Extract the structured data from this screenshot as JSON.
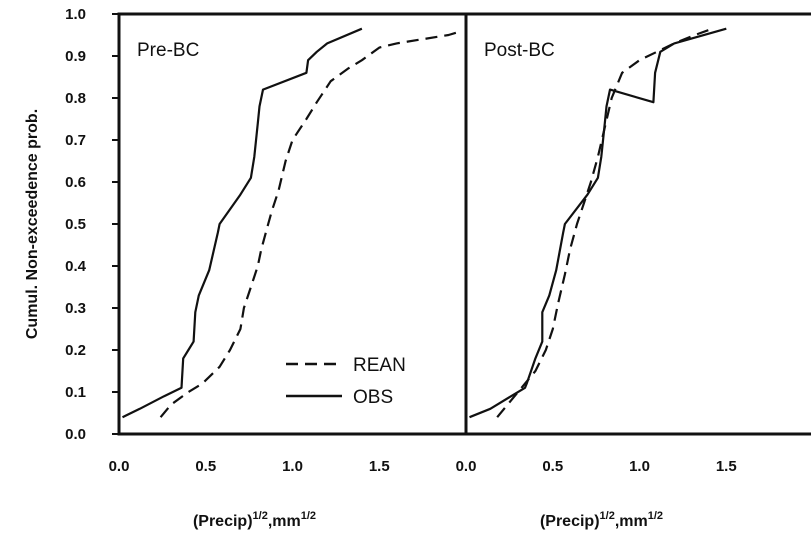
{
  "chart_data": {
    "type": "line",
    "ylabel": "Cumul. Non-exceedence prob.",
    "y_ticks": [
      "0.0",
      "0.1",
      "0.2",
      "0.3",
      "0.4",
      "0.5",
      "0.6",
      "0.7",
      "0.8",
      "0.9",
      "1.0"
    ],
    "ylim": [
      0,
      1.0
    ],
    "legend": {
      "placement": "lower-right of first panel",
      "entries": [
        "REAN",
        "OBS"
      ]
    },
    "panels": [
      {
        "label": "Pre-BC",
        "x_ticks": [
          "0.0",
          "0.5",
          "1.0",
          "1.5"
        ],
        "xlim": [
          0,
          2.0
        ],
        "xlabel": {
          "base": "(Precip)",
          "sup1": "1/2",
          "mid": ",mm",
          "sup2": "1/2"
        },
        "series": [
          {
            "name": "REAN",
            "style": "dashed",
            "x": [
              0.24,
              0.3,
              0.4,
              0.48,
              0.58,
              0.64,
              0.7,
              0.72,
              0.76,
              0.8,
              0.82,
              0.86,
              0.88,
              0.92,
              0.96,
              1.0,
              1.08,
              1.14,
              1.22,
              1.32,
              1.4,
              1.5,
              1.6,
              1.75,
              1.9,
              1.98
            ],
            "y": [
              0.04,
              0.07,
              0.1,
              0.12,
              0.16,
              0.2,
              0.25,
              0.3,
              0.35,
              0.4,
              0.44,
              0.5,
              0.53,
              0.58,
              0.65,
              0.7,
              0.75,
              0.79,
              0.84,
              0.87,
              0.89,
              0.92,
              0.93,
              0.94,
              0.95,
              0.96
            ]
          },
          {
            "name": "OBS",
            "style": "solid",
            "x": [
              0.02,
              0.12,
              0.26,
              0.36,
              0.37,
              0.4,
              0.43,
              0.44,
              0.46,
              0.52,
              0.57,
              0.58,
              0.7,
              0.76,
              0.78,
              0.8,
              0.81,
              0.83,
              1.08,
              1.09,
              1.14,
              1.2,
              1.4
            ],
            "y": [
              0.04,
              0.06,
              0.09,
              0.11,
              0.18,
              0.2,
              0.22,
              0.29,
              0.33,
              0.39,
              0.48,
              0.5,
              0.57,
              0.61,
              0.66,
              0.74,
              0.78,
              0.82,
              0.86,
              0.89,
              0.91,
              0.93,
              0.965
            ]
          }
        ]
      },
      {
        "label": "Post-BC",
        "x_ticks": [
          "0.0",
          "0.5",
          "1.0",
          "1.5"
        ],
        "xlim": [
          0,
          2.0
        ],
        "xlabel": {
          "base": "(Precip)",
          "sup1": "1/2",
          "mid": ",mm",
          "sup2": "1/2"
        },
        "series": [
          {
            "name": "REAN",
            "style": "dashed",
            "x": [
              0.18,
              0.24,
              0.32,
              0.4,
              0.46,
              0.5,
              0.53,
              0.57,
              0.6,
              0.64,
              0.68,
              0.72,
              0.76,
              0.8,
              0.84,
              0.9,
              1.0,
              1.1,
              1.2,
              1.32,
              1.42
            ],
            "y": [
              0.04,
              0.07,
              0.11,
              0.15,
              0.2,
              0.25,
              0.31,
              0.38,
              0.44,
              0.5,
              0.55,
              0.6,
              0.66,
              0.73,
              0.8,
              0.86,
              0.89,
              0.91,
              0.93,
              0.95,
              0.965
            ]
          },
          {
            "name": "OBS",
            "style": "solid",
            "x": [
              0.02,
              0.14,
              0.26,
              0.34,
              0.35,
              0.4,
              0.44,
              0.44,
              0.48,
              0.52,
              0.56,
              0.57,
              0.7,
              0.76,
              0.78,
              0.8,
              0.81,
              0.83,
              1.08,
              1.09,
              1.12,
              1.2,
              1.5
            ],
            "y": [
              0.04,
              0.06,
              0.09,
              0.11,
              0.12,
              0.18,
              0.22,
              0.29,
              0.33,
              0.39,
              0.48,
              0.5,
              0.57,
              0.61,
              0.66,
              0.74,
              0.78,
              0.82,
              0.79,
              0.86,
              0.91,
              0.93,
              0.965
            ]
          }
        ]
      }
    ]
  }
}
